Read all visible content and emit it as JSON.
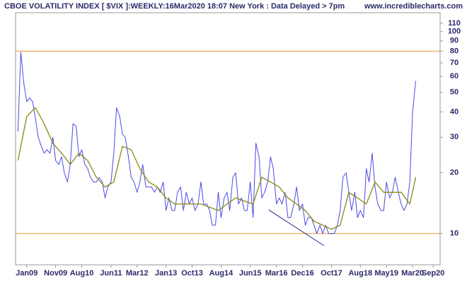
{
  "chart_data": {
    "type": "line",
    "title": "CBOE VOLATILITY INDEX [ $VIX ]:WEEKLY:16Mar2020 18:07 New York : Data Delayed > 7pm",
    "source": "www.incrediblecharts.com",
    "log_scale": true,
    "xlim": [
      2008.68,
      2020.87
    ],
    "ylim": [
      7,
      124
    ],
    "yticks": [
      10,
      20,
      30,
      40,
      50,
      60,
      70,
      80,
      90,
      100,
      110
    ],
    "xticks": [
      {
        "value": 2009.0,
        "label": "Jan09"
      },
      {
        "value": 2009.83,
        "label": "Nov09"
      },
      {
        "value": 2010.58,
        "label": "Aug10"
      },
      {
        "value": 2011.42,
        "label": "Jun11"
      },
      {
        "value": 2012.17,
        "label": "Mar12"
      },
      {
        "value": 2013.0,
        "label": "Jan13"
      },
      {
        "value": 2013.75,
        "label": "Oct13"
      },
      {
        "value": 2014.58,
        "label": "Aug14"
      },
      {
        "value": 2015.42,
        "label": "Jun15"
      },
      {
        "value": 2016.17,
        "label": "Mar16"
      },
      {
        "value": 2016.92,
        "label": "Dec16"
      },
      {
        "value": 2017.75,
        "label": "Oct17"
      },
      {
        "value": 2018.58,
        "label": "Aug18"
      },
      {
        "value": 2019.33,
        "label": "May19"
      },
      {
        "value": 2020.08,
        "label": "Mar20"
      },
      {
        "value": 2020.67,
        "label": "Sep20"
      }
    ],
    "hlines": {
      "values": [
        80,
        10
      ],
      "color": "#f0a040"
    },
    "trendline": {
      "x": [
        2015.95,
        2017.54
      ],
      "values": [
        13.1,
        8.7
      ],
      "color": "#2a2a8a"
    },
    "series": [
      {
        "color": "#4a4ae6",
        "x": [
          2008.75,
          2008.83,
          2008.92,
          2009.0,
          2009.08,
          2009.17,
          2009.25,
          2009.33,
          2009.42,
          2009.5,
          2009.58,
          2009.67,
          2009.75,
          2009.83,
          2009.92,
          2010.0,
          2010.08,
          2010.17,
          2010.25,
          2010.33,
          2010.42,
          2010.5,
          2010.58,
          2010.67,
          2010.75,
          2010.83,
          2010.92,
          2011.0,
          2011.08,
          2011.17,
          2011.25,
          2011.33,
          2011.42,
          2011.5,
          2011.58,
          2011.67,
          2011.75,
          2011.83,
          2011.92,
          2012.0,
          2012.08,
          2012.17,
          2012.25,
          2012.33,
          2012.42,
          2012.5,
          2012.58,
          2012.67,
          2012.75,
          2012.83,
          2012.92,
          2013.0,
          2013.08,
          2013.17,
          2013.25,
          2013.33,
          2013.42,
          2013.5,
          2013.58,
          2013.67,
          2013.75,
          2013.83,
          2013.92,
          2014.0,
          2014.08,
          2014.17,
          2014.25,
          2014.33,
          2014.42,
          2014.5,
          2014.58,
          2014.67,
          2014.75,
          2014.83,
          2014.92,
          2015.0,
          2015.08,
          2015.17,
          2015.25,
          2015.33,
          2015.42,
          2015.5,
          2015.58,
          2015.67,
          2015.75,
          2015.83,
          2015.92,
          2016.0,
          2016.08,
          2016.17,
          2016.25,
          2016.33,
          2016.42,
          2016.5,
          2016.58,
          2016.67,
          2016.75,
          2016.83,
          2016.92,
          2017.0,
          2017.08,
          2017.17,
          2017.25,
          2017.33,
          2017.42,
          2017.5,
          2017.58,
          2017.67,
          2017.75,
          2017.83,
          2017.92,
          2018.0,
          2018.08,
          2018.17,
          2018.25,
          2018.33,
          2018.42,
          2018.5,
          2018.58,
          2018.67,
          2018.75,
          2018.83,
          2018.92,
          2019.0,
          2019.08,
          2019.17,
          2019.25,
          2019.33,
          2019.42,
          2019.5,
          2019.58,
          2019.67,
          2019.75,
          2019.83,
          2019.92,
          2020.0,
          2020.08,
          2020.17
        ],
        "values": [
          32,
          79,
          55,
          45,
          47,
          45,
          37,
          30,
          27,
          25,
          26,
          25,
          30,
          23,
          22,
          24,
          20,
          18,
          22,
          35,
          34,
          24,
          26,
          22,
          21,
          19,
          18,
          18,
          19,
          18,
          15,
          17,
          18,
          25,
          42,
          38,
          31,
          30,
          24,
          19,
          18,
          16,
          18,
          22,
          17,
          17,
          17,
          16,
          17,
          16,
          18,
          13,
          15,
          13,
          13,
          16,
          17,
          13,
          16,
          14,
          15,
          13,
          14,
          18,
          14,
          14,
          13,
          11,
          11,
          16,
          12,
          15,
          16,
          13,
          19,
          20,
          14,
          15,
          13,
          13,
          18,
          12,
          28,
          24,
          15,
          16,
          18,
          24,
          21,
          14,
          15,
          14,
          16,
          12,
          12,
          14,
          17,
          13,
          14,
          11,
          12,
          12,
          11,
          10,
          11,
          10,
          11,
          10,
          10,
          10,
          11,
          13,
          19,
          20,
          16,
          13,
          16,
          12,
          13,
          12,
          21,
          18,
          25,
          17,
          14,
          13,
          13,
          18,
          15,
          16,
          19,
          16,
          14,
          13,
          14,
          18,
          40,
          57
        ]
      },
      {
        "color": "#8a8a10",
        "x": [
          2008.75,
          2009.0,
          2009.25,
          2009.5,
          2009.75,
          2010.0,
          2010.25,
          2010.5,
          2010.75,
          2011.0,
          2011.25,
          2011.5,
          2011.75,
          2012.0,
          2012.25,
          2012.5,
          2012.75,
          2013.0,
          2013.25,
          2013.5,
          2013.75,
          2014.0,
          2014.25,
          2014.5,
          2014.75,
          2015.0,
          2015.25,
          2015.5,
          2015.75,
          2016.0,
          2016.25,
          2016.5,
          2016.75,
          2017.0,
          2017.25,
          2017.5,
          2017.75,
          2018.0,
          2018.25,
          2018.5,
          2018.75,
          2019.0,
          2019.25,
          2019.5,
          2019.75,
          2020.0,
          2020.17
        ],
        "values": [
          23,
          38,
          42,
          35,
          28,
          25,
          22,
          25,
          23,
          19,
          17,
          18,
          27,
          26,
          21,
          18,
          17,
          15,
          14,
          14,
          14,
          14,
          13.5,
          13,
          14,
          15,
          14.5,
          14,
          19,
          18,
          17,
          15,
          14,
          13,
          11.5,
          11,
          10.5,
          11,
          16,
          15,
          14,
          18,
          16,
          16,
          16,
          14,
          19
        ]
      }
    ]
  }
}
